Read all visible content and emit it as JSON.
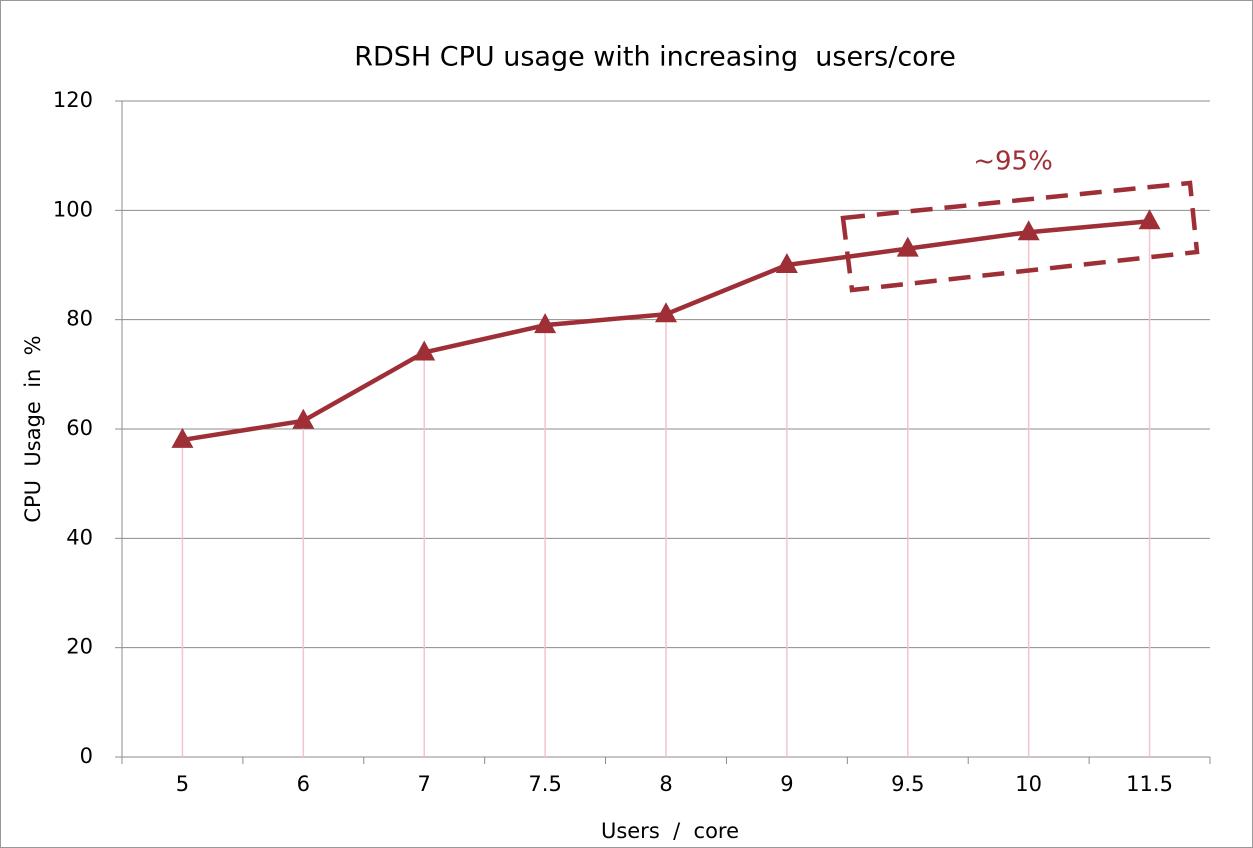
{
  "chart_data": {
    "type": "line",
    "title": "RDSH CPU usage with increasing  users/core",
    "x_label": "Users  /  core",
    "y_label": "CPU  Usage  in  %",
    "annotation": "~95%",
    "categories": [
      "5",
      "6",
      "7",
      "7.5",
      "8",
      "9",
      "9.5",
      "10",
      "11.5"
    ],
    "values": [
      58,
      61.5,
      74,
      79,
      81,
      90,
      93,
      96,
      98
    ],
    "color": "#9e2f36",
    "drop_line_color": "#f2c4cb",
    "ylim": [
      0,
      120
    ],
    "yticks": [
      0,
      20,
      40,
      60,
      80,
      100,
      120
    ],
    "grid": true
  }
}
